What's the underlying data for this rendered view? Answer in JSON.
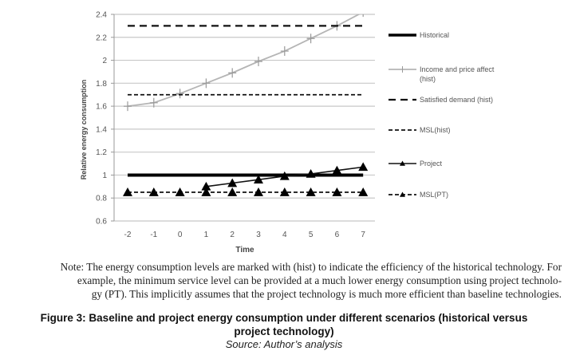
{
  "chart_data": {
    "type": "line",
    "title": "",
    "xlabel": "Time",
    "ylabel": "Relative energy consumption",
    "x": [
      -2,
      -1,
      0,
      1,
      2,
      3,
      4,
      5,
      6,
      7
    ],
    "xticks": [
      "-2",
      "-1",
      "0",
      "1",
      "2",
      "3",
      "4",
      "5",
      "6",
      "7"
    ],
    "ylim": [
      0.6,
      2.4
    ],
    "yticks": [
      "0.6",
      "0.8",
      "1",
      "1.2",
      "1.4",
      "1.6",
      "1.8",
      "2",
      "2.2",
      "2.4"
    ],
    "grid": "horizontal",
    "legend_position": "right",
    "series": [
      {
        "name": "Historical",
        "style": "solid-thick",
        "marker": "none",
        "x": [
          -2,
          7
        ],
        "values": [
          1.0,
          1.0
        ]
      },
      {
        "name": "Income and price affect (hist)",
        "style": "solid-gray",
        "marker": "plus",
        "x": [
          -2,
          -1,
          0,
          1,
          2,
          3,
          4,
          5,
          6,
          7
        ],
        "values": [
          1.6,
          1.63,
          1.71,
          1.8,
          1.89,
          1.99,
          2.08,
          2.19,
          2.3,
          2.42
        ]
      },
      {
        "name": "Satisfied demand (hist)",
        "style": "long-dash",
        "marker": "none",
        "x": [
          -2,
          7
        ],
        "values": [
          2.3,
          2.3
        ]
      },
      {
        "name": "MSL(hist)",
        "style": "short-dash",
        "marker": "none",
        "x": [
          -2,
          7
        ],
        "values": [
          1.7,
          1.7
        ]
      },
      {
        "name": "Project",
        "style": "solid",
        "marker": "triangle",
        "x": [
          1,
          2,
          3,
          4,
          5,
          6,
          7
        ],
        "values": [
          0.9,
          0.93,
          0.96,
          0.99,
          1.01,
          1.04,
          1.07
        ]
      },
      {
        "name": "MSL(PT)",
        "style": "short-dash",
        "marker": "triangle",
        "x": [
          -2,
          -1,
          0,
          1,
          2,
          3,
          4,
          5,
          6,
          7
        ],
        "values": [
          0.85,
          0.85,
          0.85,
          0.85,
          0.85,
          0.85,
          0.85,
          0.85,
          0.85,
          0.85
        ]
      }
    ]
  },
  "legend": [
    {
      "label": "Historical"
    },
    {
      "label": "Income and price affect",
      "label2": "(hist)"
    },
    {
      "label": "Satisfied demand (hist)"
    },
    {
      "label": "MSL(hist)"
    },
    {
      "label": "Project"
    },
    {
      "label": "MSL(PT)"
    }
  ],
  "note": {
    "line1": "Note: The energy consumption levels are marked with (hist) to indicate the efficiency of the historical technology. For",
    "line2": "example, the minimum service level can be provided at a much lower energy consumption using project technolo-",
    "line3": "gy (PT). This implicitly assumes that the project technology is much more efficient than baseline technologies."
  },
  "caption": {
    "line1": "Figure 3: Baseline and project energy consumption under different scenarios (historical versus",
    "line2": "project technology)"
  },
  "source": "Source: Author’s analysis"
}
